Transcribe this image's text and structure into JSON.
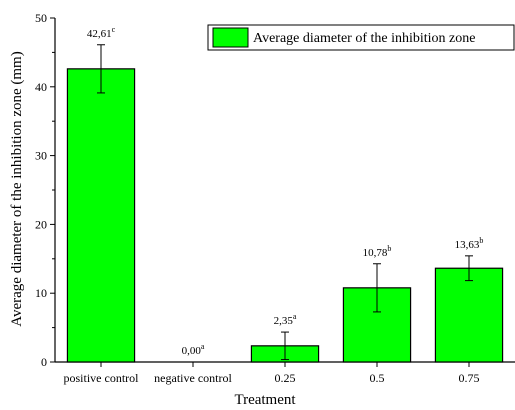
{
  "chart_data": {
    "type": "bar",
    "categories": [
      "positive control",
      "negative control",
      "0.25",
      "0.5",
      "0.75"
    ],
    "series": [
      {
        "name": "Average diameter of the inhibition zone",
        "values": [
          42.61,
          0.0,
          2.35,
          10.78,
          13.63
        ],
        "errors": [
          3.5,
          0.0,
          2.0,
          3.5,
          1.8
        ],
        "labels": [
          "42,61",
          "0,00",
          "2,35",
          "10,78",
          "13,63"
        ],
        "label_superscripts": [
          "c",
          "a",
          "a",
          "b",
          "b"
        ]
      }
    ],
    "xlabel": "Treatment",
    "ylabel": "Average diameter of the inhibition zone (mm)",
    "ylim": [
      0,
      50
    ],
    "yticks": [
      0,
      10,
      20,
      30,
      40,
      50
    ],
    "grid": false,
    "legend_position": "top-right",
    "bar_color": "#00ff00",
    "edge_color": "#000000"
  }
}
